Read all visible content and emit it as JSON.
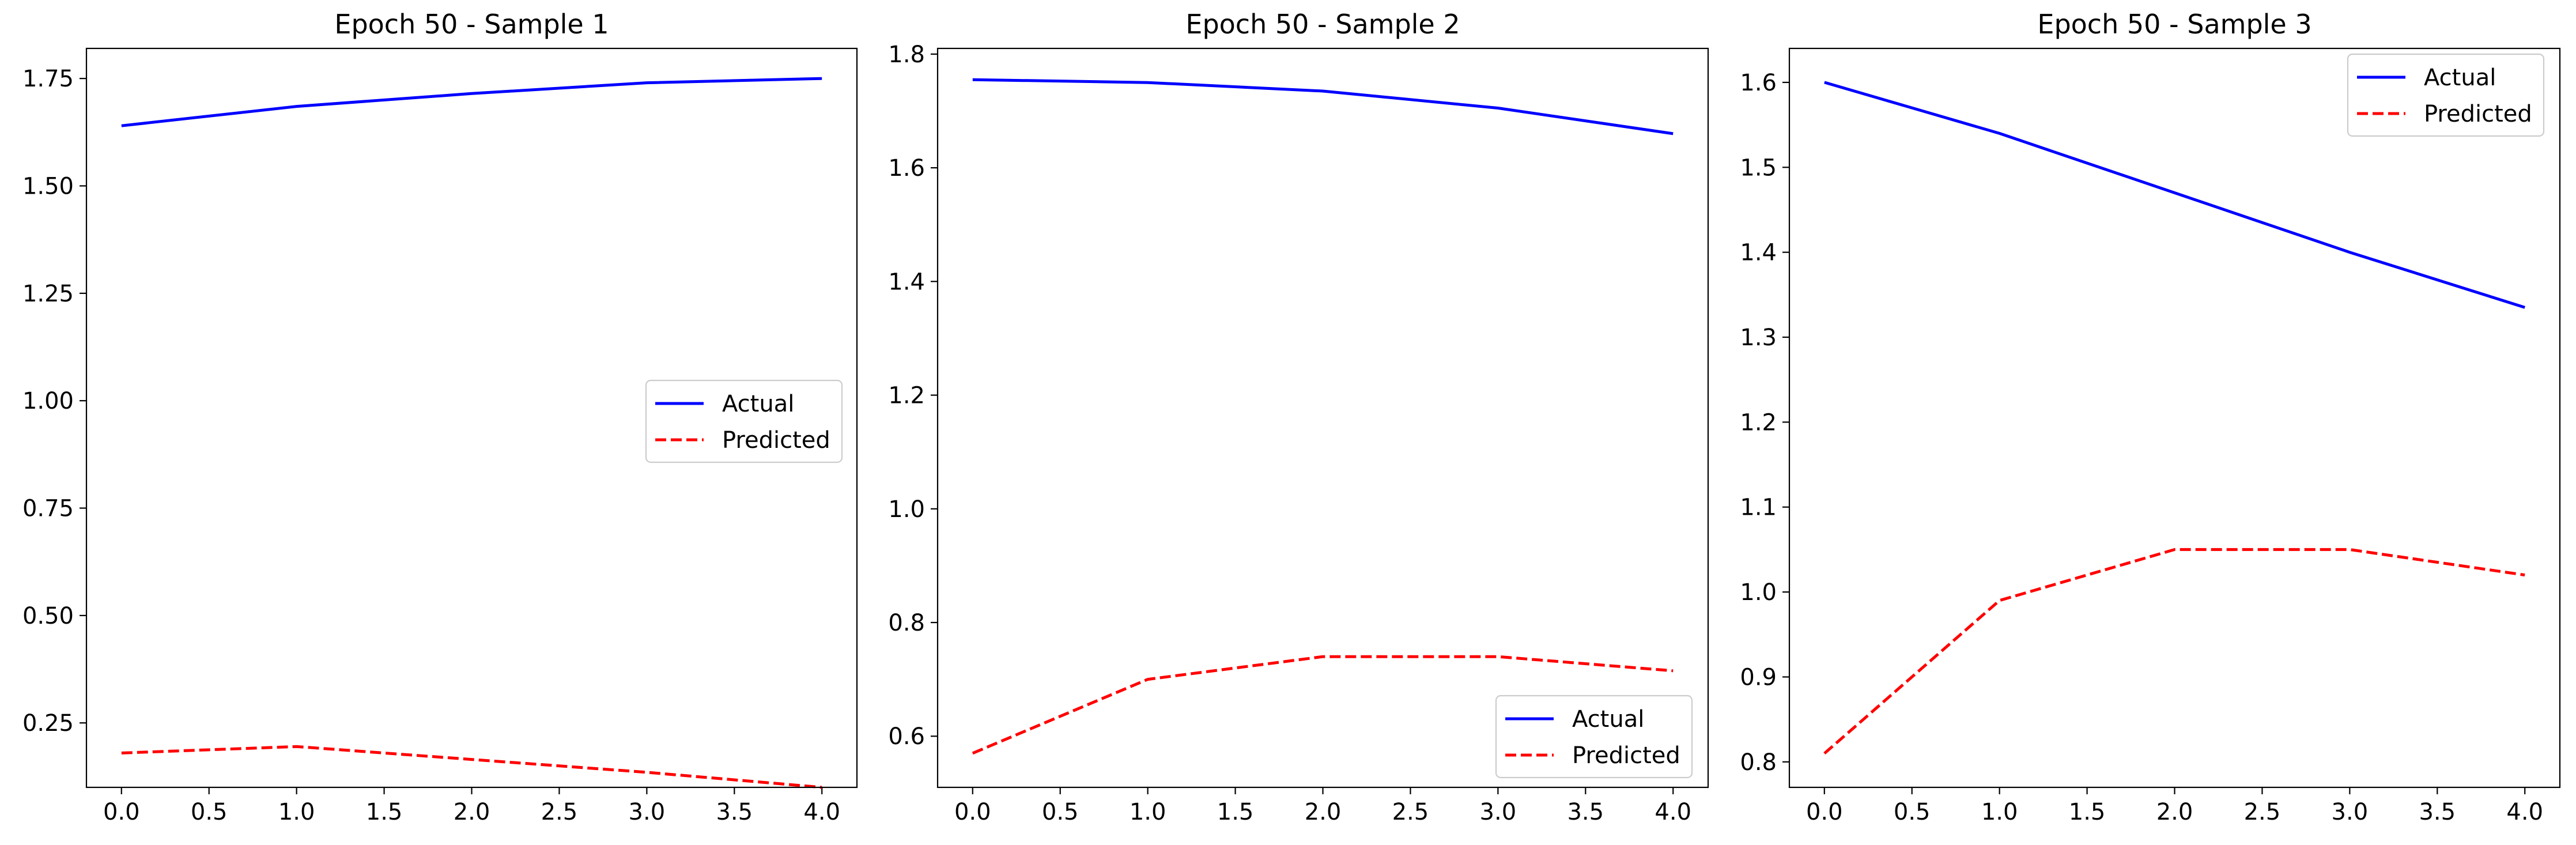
{
  "colors": {
    "actual": "#0000ff",
    "predicted": "#ff0000",
    "axes": "#000000",
    "background": "#ffffff"
  },
  "chart_data": [
    {
      "type": "line",
      "title": "Epoch 50 - Sample 1",
      "xlabel": "",
      "ylabel": "",
      "x": [
        0,
        1,
        2,
        3,
        4
      ],
      "xlim": [
        -0.2,
        4.2
      ],
      "ylim": [
        0.1,
        1.82
      ],
      "xticks": [
        0.0,
        0.5,
        1.0,
        1.5,
        2.0,
        2.5,
        3.0,
        3.5,
        4.0
      ],
      "xtick_labels": [
        "0.0",
        "0.5",
        "1.0",
        "1.5",
        "2.0",
        "2.5",
        "3.0",
        "3.5",
        "4.0"
      ],
      "yticks": [
        0.25,
        0.5,
        0.75,
        1.0,
        1.25,
        1.5,
        1.75
      ],
      "ytick_labels": [
        "0.25",
        "0.50",
        "0.75",
        "1.00",
        "1.25",
        "1.50",
        "1.75"
      ],
      "grid": false,
      "legend": "center-right",
      "series": [
        {
          "name": "Actual",
          "values": [
            1.64,
            1.685,
            1.715,
            1.74,
            1.75
          ],
          "color": "#0000ff",
          "style": "solid"
        },
        {
          "name": "Predicted",
          "values": [
            0.18,
            0.195,
            0.165,
            0.135,
            0.1
          ],
          "color": "#ff0000",
          "style": "dashed"
        }
      ]
    },
    {
      "type": "line",
      "title": "Epoch 50 - Sample 2",
      "xlabel": "",
      "ylabel": "",
      "x": [
        0,
        1,
        2,
        3,
        4
      ],
      "xlim": [
        -0.2,
        4.2
      ],
      "ylim": [
        0.51,
        1.81
      ],
      "xticks": [
        0.0,
        0.5,
        1.0,
        1.5,
        2.0,
        2.5,
        3.0,
        3.5,
        4.0
      ],
      "xtick_labels": [
        "0.0",
        "0.5",
        "1.0",
        "1.5",
        "2.0",
        "2.5",
        "3.0",
        "3.5",
        "4.0"
      ],
      "yticks": [
        0.6,
        0.8,
        1.0,
        1.2,
        1.4,
        1.6,
        1.8
      ],
      "ytick_labels": [
        "0.6",
        "0.8",
        "1.0",
        "1.2",
        "1.4",
        "1.6",
        "1.8"
      ],
      "grid": false,
      "legend": "bottom-right",
      "series": [
        {
          "name": "Actual",
          "values": [
            1.755,
            1.75,
            1.735,
            1.705,
            1.66
          ],
          "color": "#0000ff",
          "style": "solid"
        },
        {
          "name": "Predicted",
          "values": [
            0.57,
            0.7,
            0.74,
            0.74,
            0.715
          ],
          "color": "#ff0000",
          "style": "dashed"
        }
      ]
    },
    {
      "type": "line",
      "title": "Epoch 50 - Sample 3",
      "xlabel": "",
      "ylabel": "",
      "x": [
        0,
        1,
        2,
        3,
        4
      ],
      "xlim": [
        -0.2,
        4.2
      ],
      "ylim": [
        0.77,
        1.64
      ],
      "xticks": [
        0.0,
        0.5,
        1.0,
        1.5,
        2.0,
        2.5,
        3.0,
        3.5,
        4.0
      ],
      "xtick_labels": [
        "0.0",
        "0.5",
        "1.0",
        "1.5",
        "2.0",
        "2.5",
        "3.0",
        "3.5",
        "4.0"
      ],
      "yticks": [
        0.8,
        0.9,
        1.0,
        1.1,
        1.2,
        1.3,
        1.4,
        1.5,
        1.6
      ],
      "ytick_labels": [
        "0.8",
        "0.9",
        "1.0",
        "1.1",
        "1.2",
        "1.3",
        "1.4",
        "1.5",
        "1.6"
      ],
      "grid": false,
      "legend": "top-right",
      "series": [
        {
          "name": "Actual",
          "values": [
            1.6,
            1.54,
            1.47,
            1.4,
            1.335
          ],
          "color": "#0000ff",
          "style": "solid"
        },
        {
          "name": "Predicted",
          "values": [
            0.81,
            0.99,
            1.05,
            1.05,
            1.02
          ],
          "color": "#ff0000",
          "style": "dashed"
        }
      ]
    }
  ]
}
